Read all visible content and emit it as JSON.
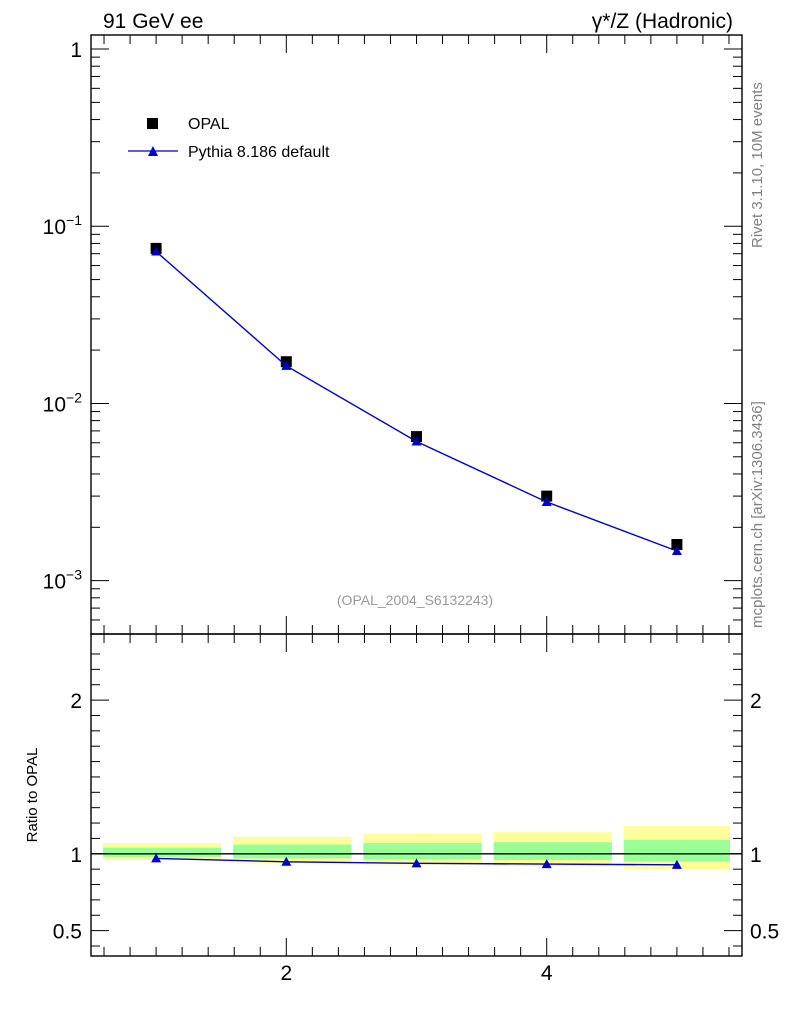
{
  "header": {
    "left_title": "91 GeV ee",
    "right_title": "γ*/Z (Hadronic)"
  },
  "side_labels": {
    "rivet": "Rivet 3.1.10,  10M events",
    "source": "mcplots.cern.ch [arXiv:1306.3436]"
  },
  "analysis_id": "(OPAL_2004_S6132243)",
  "legend": {
    "data_label": "OPAL",
    "mc_label": "Pythia 8.186 default"
  },
  "colors": {
    "data": "#000000",
    "mc": "#0000cc",
    "band_inner": "#99ff99",
    "band_outer": "#ffff99"
  },
  "chart_data": {
    "type": "scatter",
    "x_range": [
      0.5,
      5.5
    ],
    "x_ticks": [
      {
        "v": 2,
        "label": "2"
      },
      {
        "v": 4,
        "label": "4"
      }
    ],
    "main": {
      "y_scale": "log",
      "y_range": [
        0.0005,
        1.2
      ],
      "y_ticks": [
        {
          "v": 1,
          "base": "1",
          "exp": ""
        },
        {
          "v": 0.1,
          "base": "10",
          "exp": "−1"
        },
        {
          "v": 0.01,
          "base": "10",
          "exp": "−2"
        },
        {
          "v": 0.001,
          "base": "10",
          "exp": "−3"
        }
      ],
      "series": [
        {
          "name": "OPAL",
          "marker": "square",
          "x": [
            1,
            2,
            3,
            4,
            5
          ],
          "y": [
            0.075,
            0.0172,
            0.0065,
            0.003,
            0.0016
          ]
        },
        {
          "name": "Pythia 8.186 default",
          "marker": "triangle",
          "line": true,
          "x": [
            1,
            2,
            3,
            4,
            5
          ],
          "y": [
            0.072,
            0.0163,
            0.0061,
            0.00278,
            0.00147
          ]
        }
      ]
    },
    "ratio": {
      "ylabel": "Ratio to OPAL",
      "y_scale": "linear",
      "y_range": [
        0.335,
        2.43
      ],
      "y_ticks": [
        {
          "v": 0.5,
          "label": "0.5"
        },
        {
          "v": 1,
          "label": "1"
        },
        {
          "v": 2,
          "label": "2"
        }
      ],
      "bands": [
        {
          "x0": 0.5,
          "x1": 1.5,
          "inner": [
            0.98,
            1.04
          ],
          "outer": [
            0.96,
            1.07
          ]
        },
        {
          "x0": 1.5,
          "x1": 2.5,
          "inner": [
            0.97,
            1.06
          ],
          "outer": [
            0.94,
            1.11
          ]
        },
        {
          "x0": 2.5,
          "x1": 3.5,
          "inner": [
            0.965,
            1.07
          ],
          "outer": [
            0.93,
            1.13
          ]
        },
        {
          "x0": 3.5,
          "x1": 4.5,
          "inner": [
            0.96,
            1.075
          ],
          "outer": [
            0.92,
            1.14
          ]
        },
        {
          "x0": 4.5,
          "x1": 5.5,
          "inner": [
            0.95,
            1.09
          ],
          "outer": [
            0.9,
            1.18
          ]
        }
      ],
      "mc_ratio": {
        "x": [
          1,
          2,
          3,
          4,
          5
        ],
        "y": [
          0.97,
          0.948,
          0.938,
          0.933,
          0.928
        ]
      }
    }
  }
}
